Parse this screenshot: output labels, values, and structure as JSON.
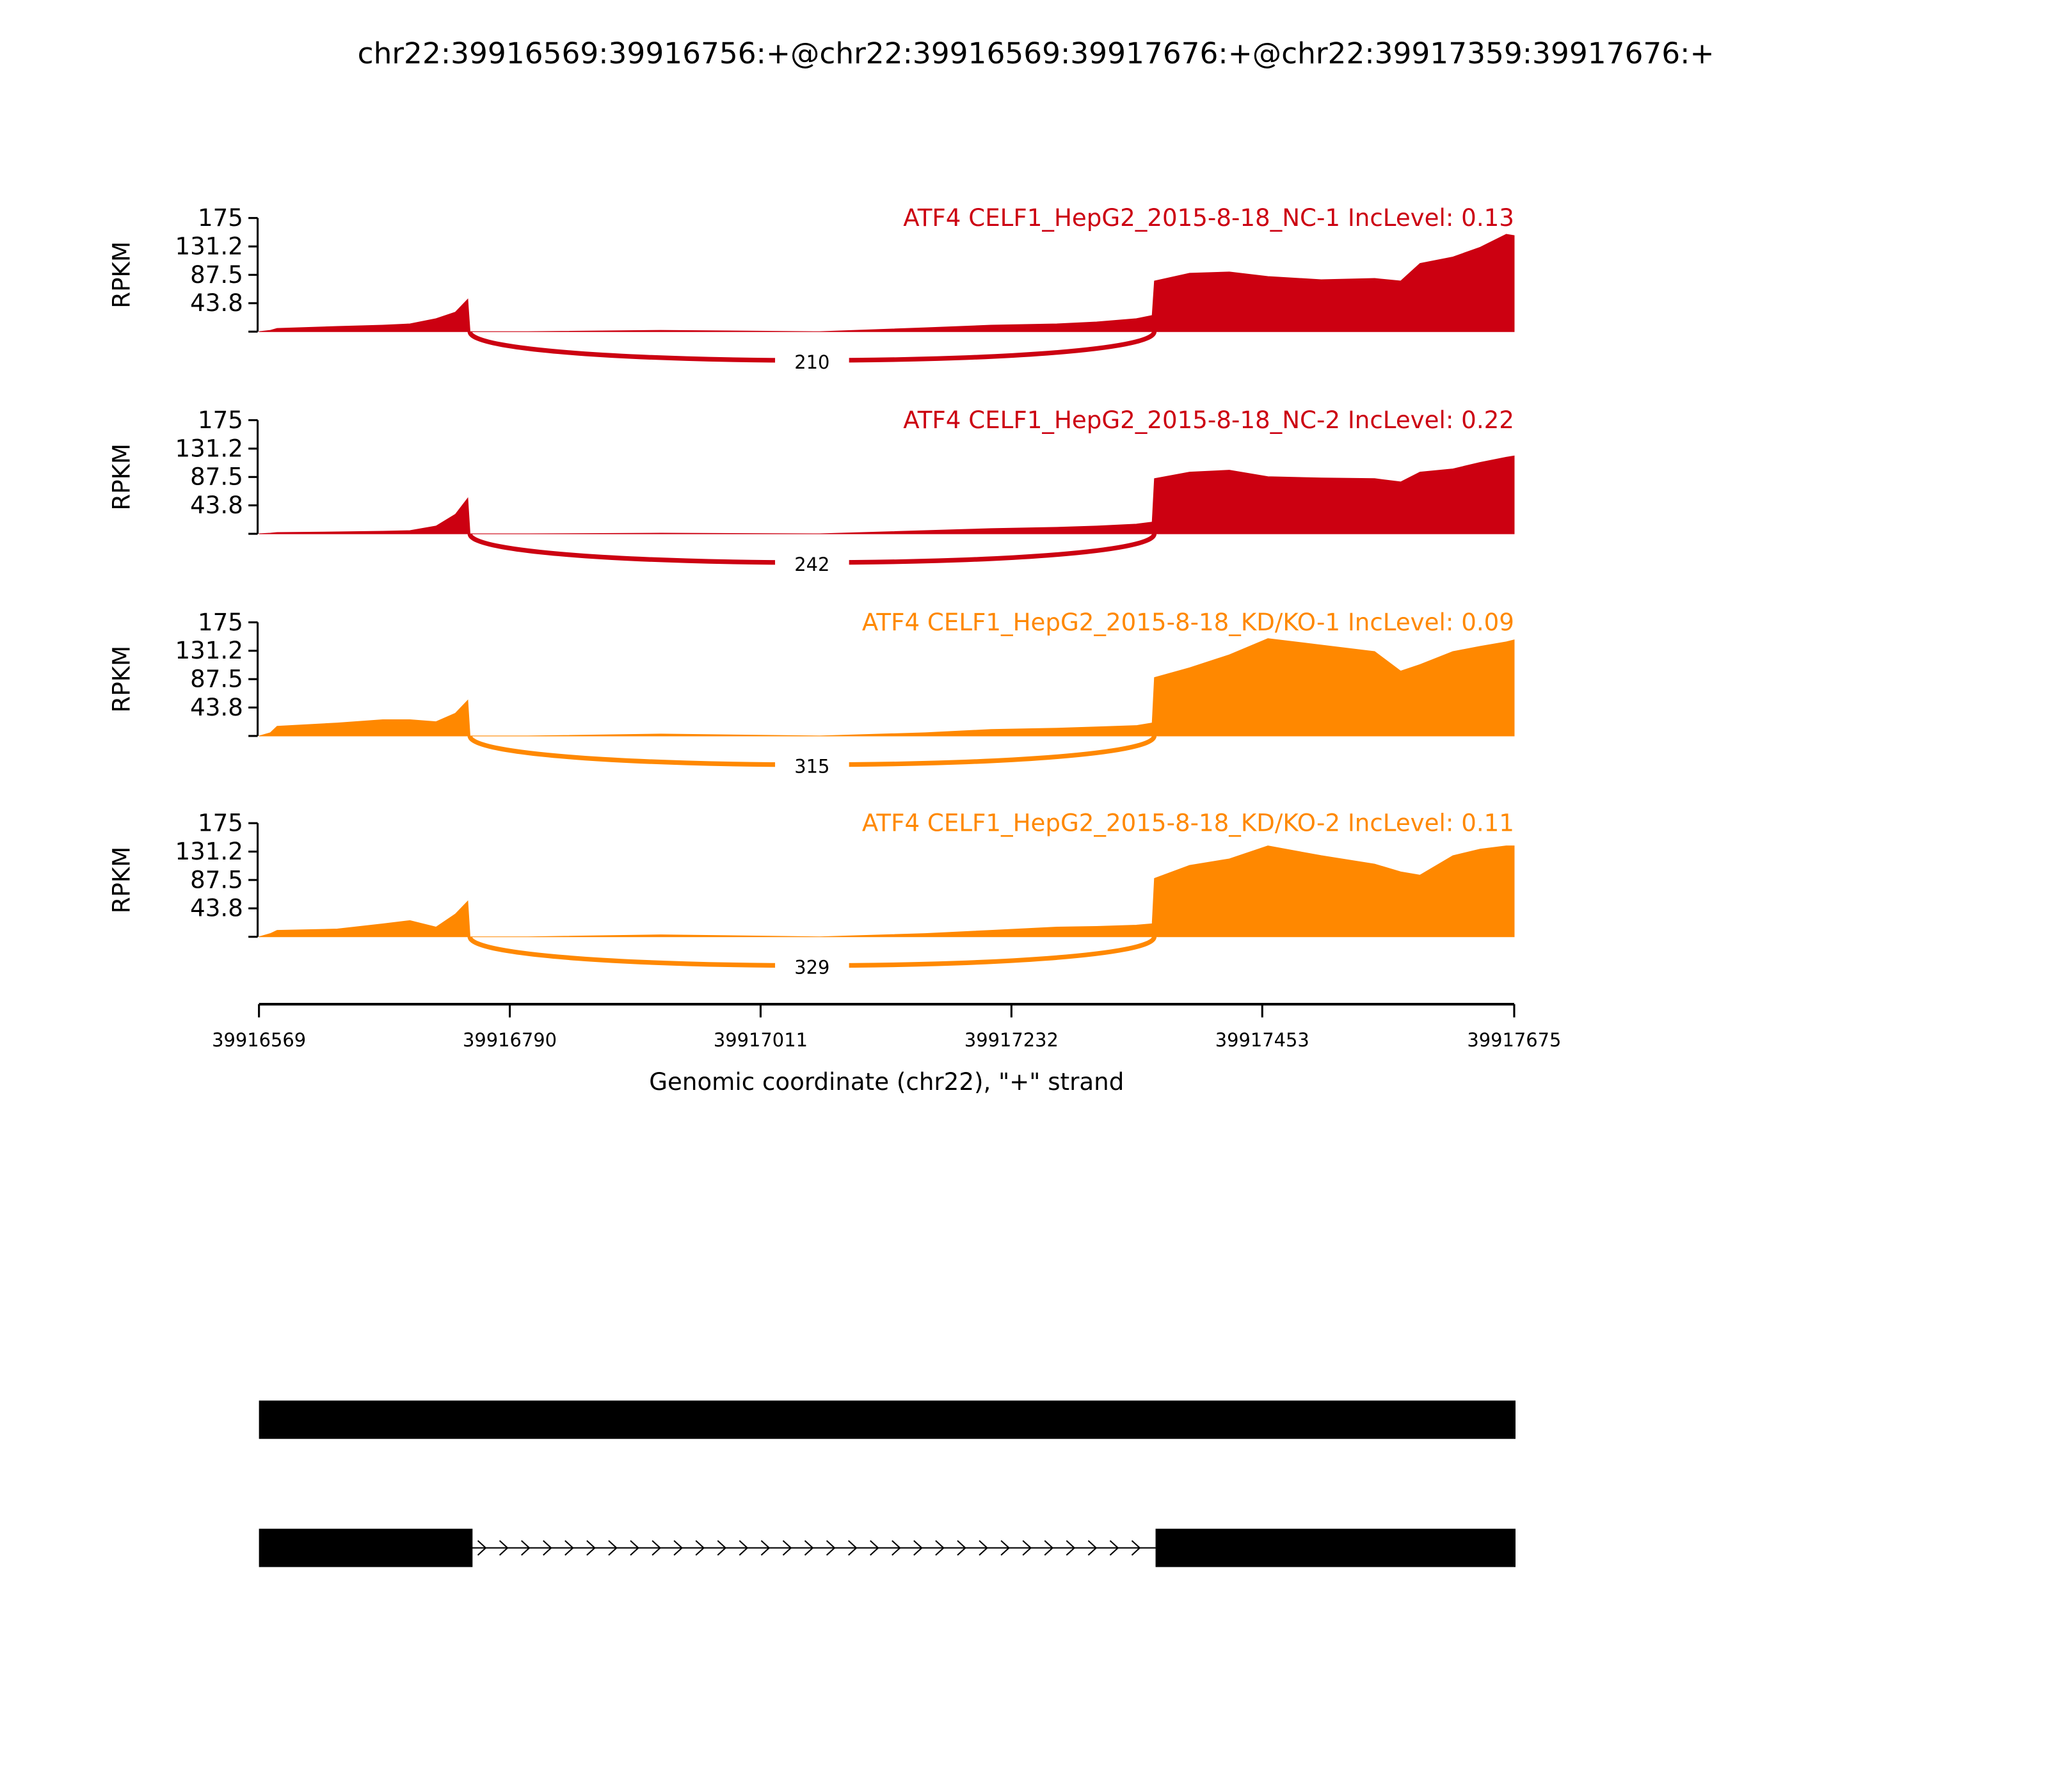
{
  "chart_data": {
    "type": "area",
    "title": "chr22:39916569:39916756:+@chr22:39916569:39917676:+@chr22:39917359:39917676:+",
    "xlabel": "Genomic coordinate (chr22), \"+\" strand",
    "ylabel": "RPKM",
    "xlim": [
      39916569,
      39917675
    ],
    "ylim": [
      0,
      175
    ],
    "xticks": [
      "39916569",
      "39916790",
      "39917011",
      "39917232",
      "39917453",
      "39917675"
    ],
    "yticks": [
      "43.8",
      "87.5",
      "131.2",
      "175"
    ],
    "x": [
      39916569,
      39916579,
      39916585,
      39916638,
      39916678,
      39916702,
      39916725,
      39916742,
      39916753,
      39916755,
      39916806,
      39916923,
      39917063,
      39917156,
      39917214,
      39917272,
      39917307,
      39917342,
      39917356,
      39917358,
      39917389,
      39917424,
      39917458,
      39917505,
      39917552,
      39917575,
      39917592,
      39917621,
      39917645,
      39917668,
      39917675
    ],
    "series": [
      {
        "name": "ATF4 CELF1_HepG2_2015-8-18_NC-1 IncLevel: 0.13",
        "color": "#cc0011",
        "values": [
          0,
          2,
          5,
          8,
          10,
          12,
          20,
          30,
          50,
          0,
          0,
          2,
          0,
          6,
          10,
          12,
          15,
          20,
          25,
          78,
          90,
          92,
          85,
          80,
          82,
          78,
          105,
          115,
          130,
          150,
          148
        ],
        "junction": {
          "start": 39916756,
          "end": 39917359,
          "count": "210"
        }
      },
      {
        "name": "ATF4 CELF1_HepG2_2015-8-18_NC-2 IncLevel: 0.22",
        "color": "#cc0011",
        "values": [
          0,
          1,
          2,
          3,
          4,
          5,
          12,
          30,
          55,
          0,
          0,
          1,
          0,
          5,
          8,
          10,
          12,
          15,
          18,
          85,
          95,
          98,
          88,
          86,
          85,
          80,
          95,
          100,
          110,
          118,
          120
        ],
        "junction": {
          "start": 39916756,
          "end": 39917359,
          "count": "242"
        }
      },
      {
        "name": "ATF4 CELF1_HepG2_2015-8-18_KD/KO-1 IncLevel: 0.09",
        "color": "#ff8800",
        "values": [
          0,
          5,
          15,
          20,
          25,
          25,
          22,
          35,
          55,
          0,
          0,
          3,
          0,
          5,
          10,
          12,
          14,
          16,
          20,
          90,
          105,
          125,
          150,
          140,
          130,
          100,
          110,
          130,
          138,
          145,
          148
        ],
        "junction": {
          "start": 39916756,
          "end": 39917359,
          "count": "315"
        }
      },
      {
        "name": "ATF4 CELF1_HepG2_2015-8-18_KD/KO-2 IncLevel: 0.11",
        "color": "#ff8800",
        "values": [
          0,
          5,
          10,
          12,
          20,
          25,
          15,
          35,
          55,
          0,
          0,
          3,
          0,
          5,
          10,
          15,
          16,
          18,
          20,
          90,
          110,
          120,
          140,
          125,
          112,
          100,
          95,
          125,
          135,
          140,
          140
        ],
        "junction": {
          "start": 39916756,
          "end": 39917359,
          "count": "329"
        }
      }
    ],
    "gene_models": [
      {
        "exons": [
          [
            39916569,
            39917675
          ]
        ]
      },
      {
        "exons": [
          [
            39916569,
            39916756
          ],
          [
            39917359,
            39917675
          ]
        ],
        "strand": "+"
      }
    ]
  }
}
